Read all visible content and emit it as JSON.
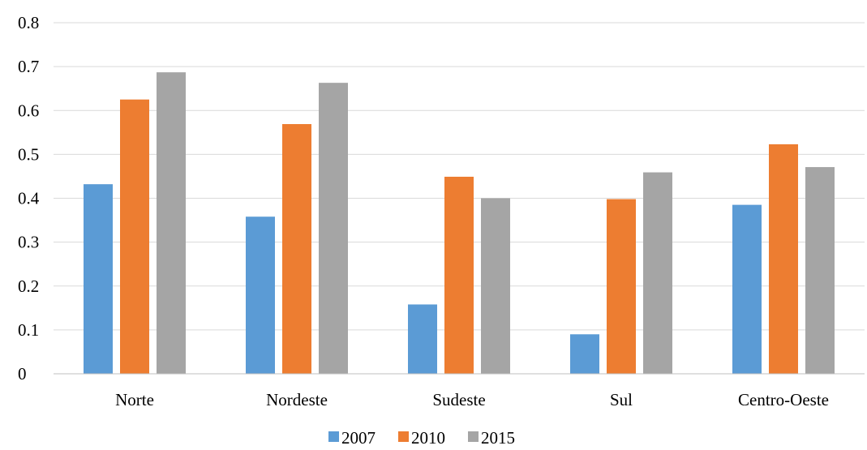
{
  "chart_data": {
    "type": "bar",
    "categories": [
      "Norte",
      "Nordeste",
      "Sudeste",
      "Sul",
      "Centro-Oeste"
    ],
    "series": [
      {
        "name": "2007",
        "color": "#5b9bd5",
        "values": [
          0.432,
          0.358,
          0.158,
          0.09,
          0.385
        ]
      },
      {
        "name": "2010",
        "color": "#ed7d31",
        "values": [
          0.625,
          0.569,
          0.449,
          0.398,
          0.523
        ]
      },
      {
        "name": "2015",
        "color": "#a5a5a5",
        "values": [
          0.687,
          0.663,
          0.4,
          0.459,
          0.471
        ]
      }
    ],
    "yticks": [
      "0",
      "0.1",
      "0.2",
      "0.3",
      "0.4",
      "0.5",
      "0.6",
      "0.7",
      "0.8"
    ],
    "ylim": [
      0,
      0.8
    ],
    "grid": true,
    "legend": "bottom",
    "title": "",
    "xlabel": "",
    "ylabel": ""
  }
}
